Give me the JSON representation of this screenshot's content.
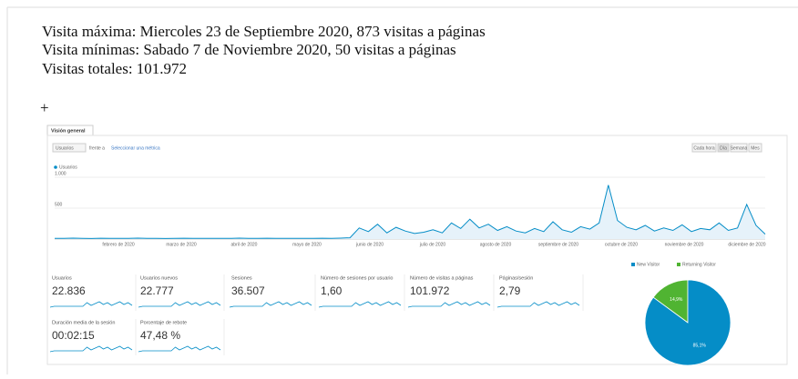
{
  "header": {
    "lines": [
      "Visita máxima: Miercoles 23 de Septiembre 2020, 873 visitas a páginas",
      "Visita mínimas: Sabado 7 de Noviembre 2020, 50  visitas a páginas",
      "Visitas totales: 101.972"
    ],
    "plus": "+"
  },
  "dashboard": {
    "tab": "Visión general",
    "metric_select": "Usuarios",
    "compare": "frente a",
    "select_metric": "Seleccionar una métrica",
    "buttons": [
      "Cada hora",
      "Día",
      "Semana",
      "Mes"
    ],
    "line_chart": {
      "legend": "Usuarios",
      "color": "#058dc7",
      "ylim": [
        0,
        1000
      ],
      "yticks": [
        {
          "value": 1000,
          "label": "1.000"
        },
        500
      ],
      "x_labels": [
        "febrero de 2020",
        "marzo de 2020",
        "abril de 2020",
        "mayo de 2020",
        "junio de 2020",
        "julio de 2020",
        "agosto de 2020",
        "septiembre de 2020",
        "octubre de 2020",
        "noviembre de 2020",
        "diciembre de 2020"
      ],
      "values": [
        12,
        10,
        14,
        11,
        9,
        13,
        12,
        10,
        11,
        14,
        12,
        10,
        9,
        11,
        13,
        12,
        10,
        11,
        12,
        10,
        14,
        11,
        12,
        13,
        10,
        11,
        12,
        10,
        11,
        13,
        12,
        15,
        20,
        180,
        120,
        240,
        100,
        190,
        130,
        90,
        110,
        150,
        100,
        260,
        170,
        320,
        180,
        240,
        140,
        200,
        130,
        100,
        170,
        120,
        280,
        150,
        110,
        200,
        160,
        260,
        873,
        300,
        190,
        150,
        220,
        130,
        180,
        140,
        230,
        120,
        170,
        150,
        260,
        140,
        180,
        560,
        220,
        80
      ]
    },
    "metrics": [
      {
        "label": "Usuarios",
        "value": "22.836"
      },
      {
        "label": "Usuarios nuevos",
        "value": "22.777"
      },
      {
        "label": "Sesiones",
        "value": "36.507"
      },
      {
        "label": "Número de sesiones por usuario",
        "value": "1,60"
      },
      {
        "label": "Número de visitas a páginas",
        "value": "101.972"
      },
      {
        "label": "Páginas/sesión",
        "value": "2,79"
      },
      {
        "label": "Duración media de la sesión",
        "value": "00:02:15"
      },
      {
        "label": "Porcentaje de rebote",
        "value": "47,48 %"
      }
    ],
    "pie": {
      "series": [
        {
          "name": "New Visitor",
          "color": "#058dc7",
          "value": 85.1,
          "value_label": "85,1%"
        },
        {
          "name": "Returning Visitor",
          "color": "#50b432",
          "value": 14.9,
          "value_label": "14,9%"
        }
      ]
    }
  }
}
